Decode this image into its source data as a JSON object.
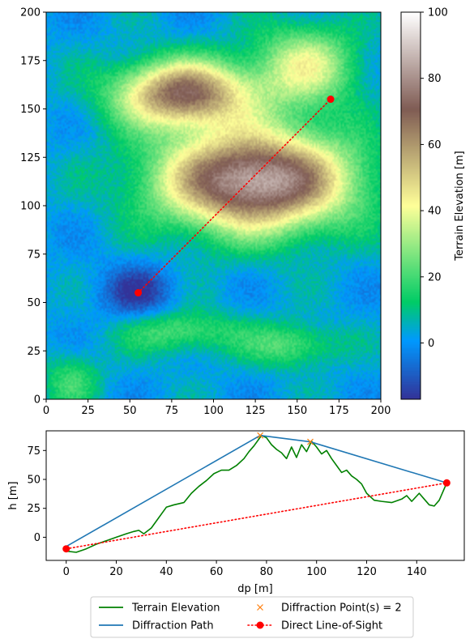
{
  "chart_data": [
    {
      "type": "heatmap",
      "title": "",
      "xlabel": "",
      "ylabel": "",
      "xlim": [
        0,
        200
      ],
      "ylim": [
        0,
        200
      ],
      "xticks": [
        "0",
        "25",
        "50",
        "75",
        "100",
        "125",
        "150",
        "175",
        "200"
      ],
      "yticks": [
        "0",
        "25",
        "50",
        "75",
        "100",
        "125",
        "150",
        "175",
        "200"
      ],
      "colorbar": {
        "label": "Terrain Elevation [m]",
        "range": [
          -17,
          100
        ],
        "ticks": [
          "0",
          "20",
          "40",
          "60",
          "80",
          "100"
        ],
        "colormap": "terrain"
      },
      "terrain_features": [
        {
          "x": 125,
          "y": 113,
          "elevation": 88,
          "sx": 40,
          "sy": 18
        },
        {
          "x": 82,
          "y": 158,
          "elevation": 70,
          "sx": 28,
          "sy": 12
        },
        {
          "x": 155,
          "y": 172,
          "elevation": 38,
          "sx": 22,
          "sy": 15
        },
        {
          "x": 80,
          "y": 35,
          "elevation": 22,
          "sx": 25,
          "sy": 8
        },
        {
          "x": 147,
          "y": 28,
          "elevation": 22,
          "sx": 20,
          "sy": 8
        },
        {
          "x": 15,
          "y": 10,
          "elevation": 18,
          "sx": 12,
          "sy": 10
        }
      ],
      "line_of_sight": {
        "x": [
          55,
          170
        ],
        "y": [
          55,
          155
        ],
        "color": "#ff0000"
      }
    },
    {
      "type": "line",
      "title": "",
      "xlabel": "dp [m]",
      "ylabel": "h [m]",
      "xlim": [
        -8,
        159
      ],
      "ylim": [
        -20,
        92
      ],
      "xticks": [
        "0",
        "20",
        "40",
        "60",
        "80",
        "100",
        "120",
        "140"
      ],
      "yticks": [
        "0",
        "25",
        "50",
        "75"
      ],
      "series": [
        {
          "name": "Terrain Elevation",
          "color": "#008000",
          "style": "solid",
          "x": [
            0,
            4,
            8,
            12,
            16,
            20,
            24,
            27,
            29,
            31,
            34,
            37,
            40,
            43,
            47,
            50,
            53,
            56,
            59,
            62,
            65,
            68,
            71,
            73,
            75,
            77,
            78,
            80,
            82,
            84,
            86,
            88,
            90,
            92,
            94,
            96,
            98,
            100,
            102,
            104,
            106,
            108,
            110,
            112,
            114,
            116,
            118,
            120,
            123,
            126,
            130,
            134,
            136,
            138,
            141,
            143,
            145,
            147,
            149,
            152
          ],
          "y": [
            -12,
            -13,
            -10,
            -6,
            -3,
            0,
            3,
            5,
            6,
            3,
            8,
            17,
            26,
            28,
            30,
            38,
            44,
            49,
            55,
            58,
            58,
            62,
            68,
            74,
            79,
            85,
            88,
            86,
            80,
            76,
            73,
            68,
            78,
            69,
            80,
            74,
            83,
            78,
            72,
            75,
            68,
            62,
            56,
            58,
            53,
            50,
            46,
            38,
            32,
            31,
            30,
            33,
            36,
            31,
            38,
            33,
            28,
            27,
            32,
            47
          ]
        },
        {
          "name": "Diffraction Path",
          "color": "#1f77b4",
          "style": "solid",
          "x": [
            0,
            77.5,
            97.5,
            152
          ],
          "y": [
            -8,
            88,
            82.5,
            47
          ]
        },
        {
          "name": "Diffraction Point(s) = 2",
          "color": "#ff7f0e",
          "style": "marker-x",
          "x": [
            77.5,
            97.5
          ],
          "y": [
            88,
            82.5
          ]
        },
        {
          "name": "Direct Line-of-Sight",
          "color": "#ff0000",
          "style": "dotted-circle",
          "x": [
            0,
            152
          ],
          "y": [
            -10,
            47
          ]
        }
      ],
      "legend": "bottom-center, two columns"
    }
  ]
}
